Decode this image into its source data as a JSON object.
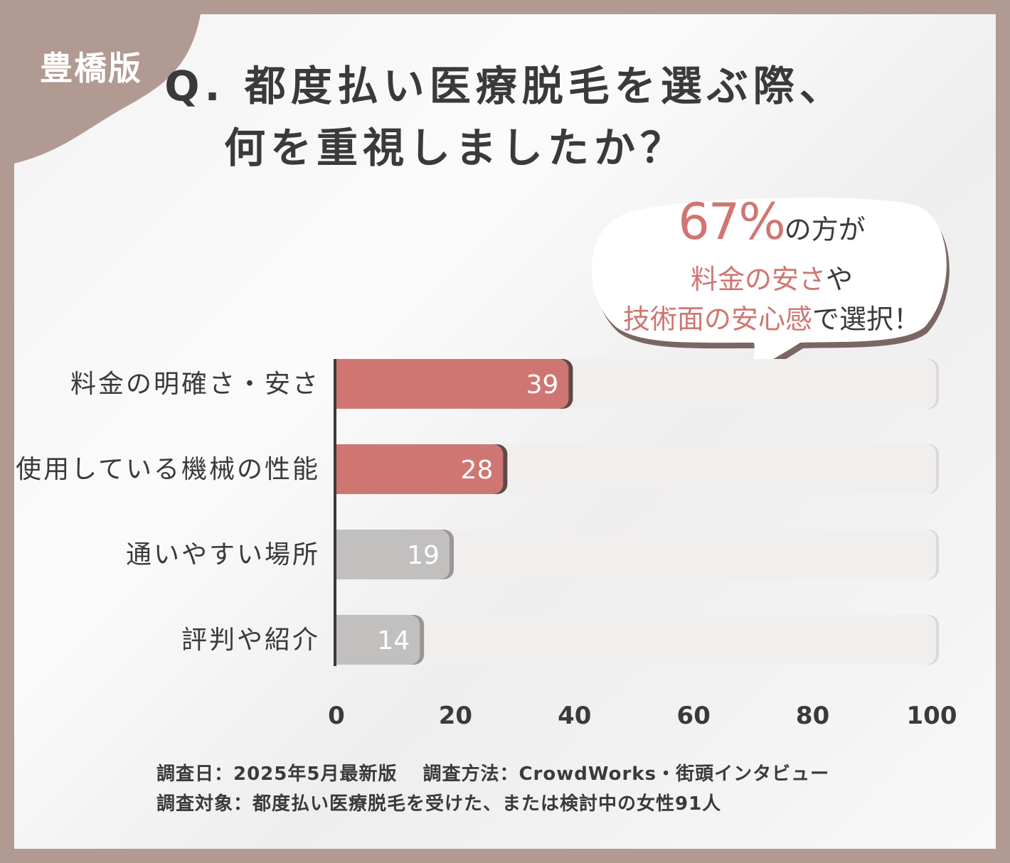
{
  "region_badge": "豊橋版",
  "title": {
    "line1": "Q. 都度払い医療脱毛を選ぶ際、",
    "line2": "何を重視しましたか？"
  },
  "callout": {
    "percent": "67%",
    "line1_suffix": "の方が",
    "line2_accent": "料金の安さ",
    "line2_suffix": "や",
    "line3_accent": "技術面の安心感",
    "line3_suffix": "で選択！"
  },
  "chart_data": {
    "type": "bar",
    "orientation": "horizontal",
    "categories": [
      "料金の明確さ・安さ",
      "使用している機械の性能",
      "通いやすい場所",
      "評判や紹介"
    ],
    "values": [
      39,
      28,
      19,
      14
    ],
    "xlim": [
      0,
      100
    ],
    "xticks": [
      "0",
      "20",
      "40",
      "60",
      "80",
      "100"
    ],
    "grid": false,
    "colors": {
      "highlight": "#d07672",
      "highlight_shadow": "#5b4a48",
      "muted": "#c2bfbf",
      "muted_shadow": "#9a9696",
      "track": "#f1efee"
    },
    "highlighted": [
      true,
      true,
      false,
      false
    ]
  },
  "footer": {
    "line1_a": "調査日：2025年5月最新版",
    "line1_b": "調査方法：CrowdWorks・街頭インタビュー",
    "line2": "調査対象：都度払い医療脱毛を受けた、または検討中の女性91人"
  }
}
